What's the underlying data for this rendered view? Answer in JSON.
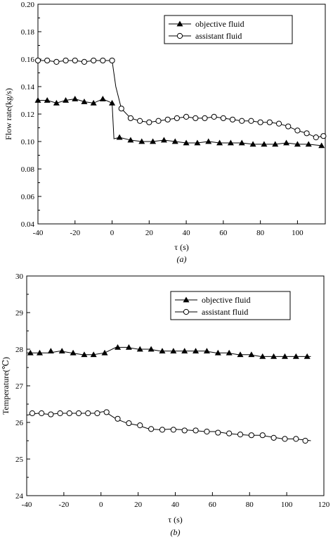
{
  "chart_data": [
    {
      "type": "line",
      "caption": "(a)",
      "xlabel": "τ (s)",
      "ylabel": "Flow rate(kg/s)",
      "xlim": [
        -40,
        115
      ],
      "ylim": [
        0.04,
        0.2
      ],
      "xticks": [
        -40,
        -20,
        0,
        20,
        40,
        60,
        80,
        100
      ],
      "yticks": [
        0.04,
        0.06,
        0.08,
        0.1,
        0.12,
        0.14,
        0.16,
        0.18,
        0.2
      ],
      "ytick_labels": [
        "0.04",
        "0.06",
        "0.08",
        "0.10",
        "0.12",
        "0.14",
        "0.16",
        "0.18",
        "0.20"
      ],
      "legend_position": "top-right",
      "series": [
        {
          "name": "objective fluid",
          "marker": "filled-triangle",
          "x": [
            -40,
            -35,
            -30,
            -25,
            -20,
            -15,
            -10,
            -5,
            0,
            1,
            4,
            10,
            16,
            22,
            28,
            34,
            40,
            46,
            52,
            58,
            64,
            70,
            76,
            82,
            88,
            94,
            100,
            106,
            113
          ],
          "y": [
            0.13,
            0.13,
            0.128,
            0.13,
            0.131,
            0.129,
            0.128,
            0.131,
            0.128,
            0.102,
            0.103,
            0.101,
            0.1,
            0.1,
            0.101,
            0.1,
            0.099,
            0.099,
            0.1,
            0.099,
            0.099,
            0.099,
            0.098,
            0.098,
            0.098,
            0.099,
            0.098,
            0.098,
            0.097
          ],
          "markers_x": [
            -40,
            -35,
            -30,
            -25,
            -20,
            -15,
            -10,
            -5,
            0,
            4,
            10,
            16,
            22,
            28,
            34,
            40,
            46,
            52,
            58,
            64,
            70,
            76,
            82,
            88,
            94,
            100,
            106,
            113
          ],
          "markers_y": [
            0.13,
            0.13,
            0.128,
            0.13,
            0.131,
            0.129,
            0.128,
            0.131,
            0.128,
            0.103,
            0.101,
            0.1,
            0.1,
            0.101,
            0.1,
            0.099,
            0.099,
            0.1,
            0.099,
            0.099,
            0.099,
            0.098,
            0.098,
            0.098,
            0.099,
            0.098,
            0.098,
            0.097
          ]
        },
        {
          "name": "assistant fluid",
          "marker": "open-circle",
          "x": [
            -40,
            -35,
            -30,
            -25,
            -20,
            -15,
            -10,
            -5,
            0,
            2,
            5,
            10,
            15,
            20,
            25,
            30,
            35,
            40,
            45,
            50,
            55,
            60,
            65,
            70,
            75,
            80,
            85,
            90,
            95,
            100,
            105,
            110,
            114
          ],
          "y": [
            0.159,
            0.159,
            0.158,
            0.159,
            0.159,
            0.158,
            0.159,
            0.159,
            0.159,
            0.14,
            0.124,
            0.117,
            0.115,
            0.114,
            0.115,
            0.116,
            0.117,
            0.118,
            0.117,
            0.117,
            0.118,
            0.117,
            0.116,
            0.115,
            0.115,
            0.114,
            0.114,
            0.113,
            0.111,
            0.108,
            0.106,
            0.103,
            0.104
          ],
          "markers_x": [
            -40,
            -35,
            -30,
            -25,
            -20,
            -15,
            -10,
            -5,
            0,
            5,
            10,
            15,
            20,
            25,
            30,
            35,
            40,
            45,
            50,
            55,
            60,
            65,
            70,
            75,
            80,
            85,
            90,
            95,
            100,
            105,
            110,
            114
          ],
          "markers_y": [
            0.159,
            0.159,
            0.158,
            0.159,
            0.159,
            0.158,
            0.159,
            0.159,
            0.159,
            0.124,
            0.117,
            0.115,
            0.114,
            0.115,
            0.116,
            0.117,
            0.118,
            0.117,
            0.117,
            0.118,
            0.117,
            0.116,
            0.115,
            0.115,
            0.114,
            0.114,
            0.113,
            0.111,
            0.108,
            0.106,
            0.103,
            0.104
          ]
        }
      ]
    },
    {
      "type": "line",
      "caption": "(b)",
      "xlabel": "τ (s)",
      "ylabel": "Temperature(℃)",
      "xlim": [
        -40,
        120
      ],
      "ylim": [
        24,
        30
      ],
      "xticks": [
        -40,
        -20,
        0,
        20,
        40,
        60,
        80,
        100,
        120
      ],
      "yticks": [
        24,
        25,
        26,
        27,
        28,
        29,
        30
      ],
      "ytick_labels": [
        "24",
        "25",
        "26",
        "27",
        "28",
        "29",
        "30"
      ],
      "legend_position": "top-right",
      "series": [
        {
          "name": "objective fluid",
          "marker": "filled-triangle",
          "x": [
            -40,
            -34,
            -28,
            -22,
            -16,
            -10,
            -4,
            2,
            8,
            14,
            20,
            26,
            32,
            38,
            44,
            50,
            56,
            62,
            68,
            74,
            80,
            86,
            92,
            98,
            104,
            110,
            113
          ],
          "y": [
            27.9,
            27.9,
            27.9,
            27.95,
            27.9,
            27.85,
            27.85,
            27.9,
            28.05,
            28.05,
            28.0,
            28.0,
            27.95,
            27.95,
            27.95,
            27.95,
            27.95,
            27.9,
            27.9,
            27.85,
            27.85,
            27.8,
            27.8,
            27.8,
            27.8,
            27.8,
            27.8
          ],
          "markers_x": [
            -38,
            -33,
            -27,
            -21,
            -15,
            -9,
            -4,
            2,
            9,
            15,
            21,
            27,
            33,
            39,
            45,
            51,
            57,
            63,
            69,
            75,
            81,
            87,
            93,
            99,
            105,
            111
          ],
          "markers_y": [
            27.9,
            27.9,
            27.95,
            27.95,
            27.9,
            27.85,
            27.85,
            27.9,
            28.05,
            28.05,
            28.0,
            28.0,
            27.95,
            27.95,
            27.95,
            27.95,
            27.95,
            27.9,
            27.9,
            27.85,
            27.85,
            27.8,
            27.8,
            27.8,
            27.8,
            27.8
          ]
        },
        {
          "name": "assistant fluid",
          "marker": "open-circle",
          "x": [
            -40,
            -34,
            -28,
            -22,
            -16,
            -10,
            -4,
            2,
            8,
            14,
            20,
            26,
            32,
            38,
            44,
            50,
            56,
            62,
            68,
            74,
            80,
            86,
            92,
            98,
            104,
            110,
            113
          ],
          "y": [
            26.2,
            26.25,
            26.22,
            26.25,
            26.25,
            26.25,
            26.25,
            26.3,
            26.1,
            25.98,
            25.92,
            25.82,
            25.8,
            25.82,
            25.8,
            25.78,
            25.75,
            25.75,
            25.7,
            25.67,
            25.65,
            25.65,
            25.6,
            25.55,
            25.55,
            25.52,
            25.5
          ],
          "markers_x": [
            -37,
            -32,
            -27,
            -22,
            -17,
            -12,
            -7,
            -2,
            3,
            9,
            15,
            21,
            27,
            33,
            39,
            45,
            51,
            57,
            63,
            69,
            75,
            81,
            87,
            93,
            99,
            105,
            110
          ],
          "markers_y": [
            26.25,
            26.25,
            26.22,
            26.25,
            26.25,
            26.25,
            26.25,
            26.25,
            26.28,
            26.1,
            25.98,
            25.92,
            25.82,
            25.8,
            25.8,
            25.78,
            25.78,
            25.75,
            25.72,
            25.7,
            25.67,
            25.65,
            25.65,
            25.58,
            25.55,
            25.55,
            25.5
          ]
        }
      ]
    }
  ]
}
